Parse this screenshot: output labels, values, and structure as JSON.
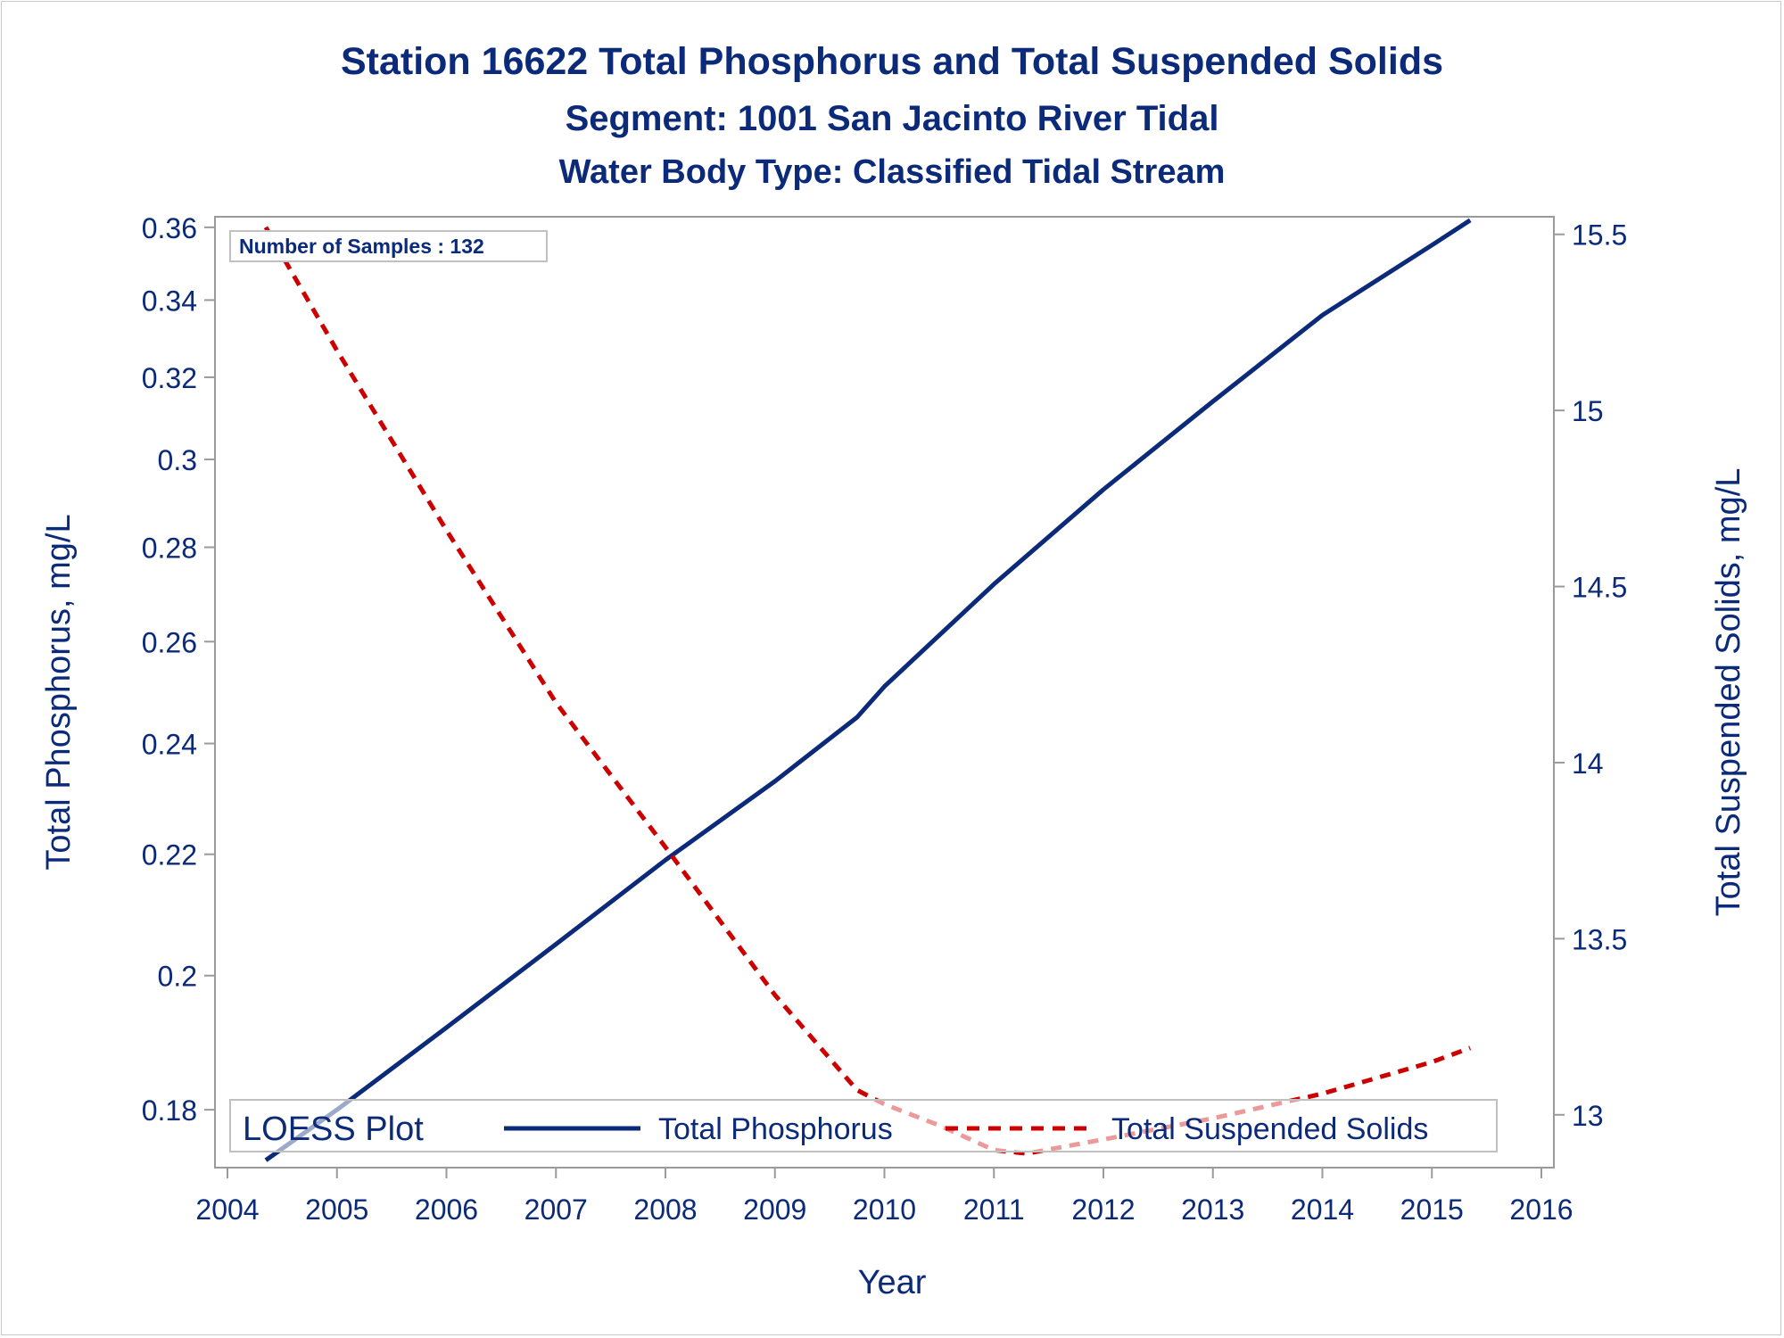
{
  "chart_data": {
    "type": "line",
    "title": "Station 16622  Total Phosphorus and Total Suspended Solids",
    "subtitle": "Segment: 1001  San Jacinto River Tidal",
    "subtitle2": "Water Body Type: Classified Tidal Stream",
    "xlabel": "Year",
    "ylabel_left": "Total Phosphorus, mg/L",
    "ylabel_right": "Total Suspended Solids, mg/L",
    "xlim": [
      2004,
      2016
    ],
    "x_ticks": [
      "2004",
      "2005",
      "2006",
      "2007",
      "2008",
      "2009",
      "2010",
      "2011",
      "2012",
      "2013",
      "2014",
      "2015",
      "2016"
    ],
    "ylim_left": [
      0.172,
      0.363
    ],
    "y_scale_left": "log",
    "y_ticks_left": [
      "0.18",
      "0.2",
      "0.22",
      "0.24",
      "0.26",
      "0.28",
      "0.3",
      "0.32",
      "0.34",
      "0.36"
    ],
    "ylim_right": [
      12.85,
      15.55
    ],
    "y_ticks_right": [
      "13",
      "13.5",
      "14",
      "14.5",
      "15",
      "15.5"
    ],
    "inset_text": "Number of Samples : 132",
    "legend": {
      "title": "LOESS Plot",
      "placement": "bottom-inside",
      "items": [
        {
          "label": "Total Phosphorus",
          "style": "solid"
        },
        {
          "label": "Total Suspended Solids",
          "style": "dashed"
        }
      ]
    },
    "colors": {
      "phosphorus": "#0b2a7a",
      "solids": "#cc0000",
      "text": "#0b2a7a"
    },
    "series": [
      {
        "name": "Total Phosphorus",
        "axis": "left",
        "x": [
          2004.35,
          2005.0,
          2006.0,
          2007.0,
          2008.0,
          2009.0,
          2009.75,
          2010.0,
          2011.0,
          2012.0,
          2013.0,
          2014.0,
          2015.0,
          2015.35
        ],
        "values": [
          0.173,
          0.18,
          0.192,
          0.205,
          0.219,
          0.233,
          0.245,
          0.251,
          0.272,
          0.293,
          0.314,
          0.336,
          0.355,
          0.362
        ]
      },
      {
        "name": "Total Suspended Solids",
        "axis": "right",
        "x": [
          2004.35,
          2005.0,
          2006.0,
          2007.0,
          2008.0,
          2009.0,
          2009.75,
          2010.0,
          2010.5,
          2011.0,
          2011.3,
          2012.0,
          2013.0,
          2014.0,
          2015.0,
          2015.35
        ],
        "values": [
          15.52,
          15.17,
          14.66,
          14.17,
          13.76,
          13.34,
          13.07,
          13.03,
          12.97,
          12.9,
          12.89,
          12.93,
          12.99,
          13.06,
          13.15,
          13.19
        ]
      }
    ]
  }
}
